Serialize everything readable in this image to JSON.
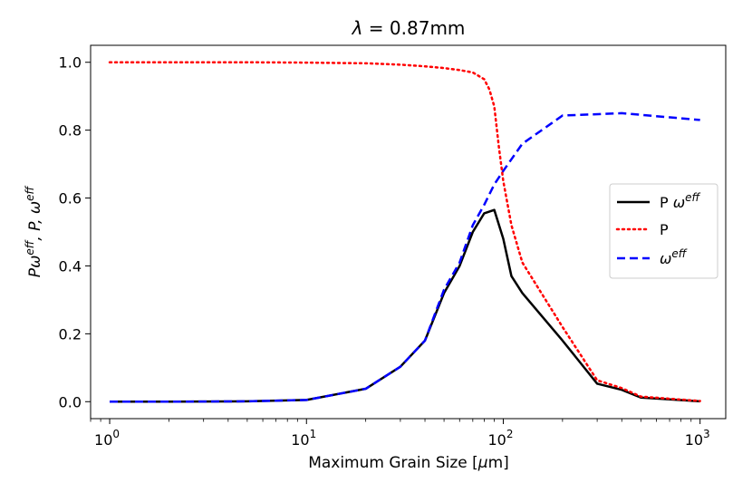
{
  "chart_data": {
    "type": "line",
    "title": "λ = 0.87mm",
    "title_prefix": "λ",
    "title_suffix": " = 0.87mm",
    "xlabel": "Maximum Grain Size [μm]",
    "xlabel_prefix": "Maximum Grain Size [",
    "xlabel_unit": "μ",
    "xlabel_suffix": "m]",
    "ylabel": "Pω^eff, P, ω^eff",
    "xscale": "log",
    "xlim": [
      0.8,
      1350
    ],
    "ylim": [
      -0.05,
      1.05
    ],
    "xticks": [
      {
        "value": 1,
        "base": "10",
        "exp": "0"
      },
      {
        "value": 10,
        "base": "10",
        "exp": "1"
      },
      {
        "value": 100,
        "base": "10",
        "exp": "2"
      },
      {
        "value": 1000,
        "base": "10",
        "exp": "3"
      }
    ],
    "yticks": [
      {
        "value": 0.0,
        "label": "0.0"
      },
      {
        "value": 0.2,
        "label": "0.2"
      },
      {
        "value": 0.4,
        "label": "0.4"
      },
      {
        "value": 0.6,
        "label": "0.6"
      },
      {
        "value": 0.8,
        "label": "0.8"
      },
      {
        "value": 1.0,
        "label": "1.0"
      }
    ],
    "legend_position": "center-right",
    "series": [
      {
        "name": "P ω^eff",
        "legend_prefix": "P ",
        "legend_symbol": "ω",
        "legend_sup": "eff",
        "color": "#000000",
        "style": "solid",
        "x": [
          1,
          2,
          5,
          10,
          20,
          30,
          40,
          50,
          60,
          70,
          80,
          90,
          100,
          110,
          125,
          200,
          300,
          400,
          500,
          1000
        ],
        "y": [
          0.0,
          0.0,
          0.001,
          0.005,
          0.038,
          0.103,
          0.18,
          0.32,
          0.4,
          0.5,
          0.555,
          0.565,
          0.48,
          0.37,
          0.32,
          0.18,
          0.053,
          0.035,
          0.012,
          0.001
        ]
      },
      {
        "name": "P",
        "legend_prefix": "P",
        "legend_symbol": "",
        "legend_sup": "",
        "color": "#ff0000",
        "style": "dotted",
        "x": [
          1,
          2,
          5,
          10,
          20,
          30,
          40,
          50,
          60,
          70,
          80,
          85,
          90,
          95,
          100,
          110,
          125,
          200,
          300,
          400,
          500,
          1000
        ],
        "y": [
          1.0,
          1.0,
          1.0,
          0.999,
          0.997,
          0.993,
          0.988,
          0.983,
          0.977,
          0.97,
          0.95,
          0.92,
          0.87,
          0.75,
          0.65,
          0.52,
          0.41,
          0.22,
          0.063,
          0.04,
          0.015,
          0.002
        ]
      },
      {
        "name": "ω^eff",
        "legend_prefix": "",
        "legend_symbol": "ω",
        "legend_sup": "eff",
        "color": "#0000ff",
        "style": "dashed",
        "x": [
          1,
          2,
          5,
          10,
          20,
          30,
          40,
          50,
          60,
          70,
          80,
          90,
          100,
          125,
          200,
          400,
          1000
        ],
        "y": [
          0.0,
          0.0,
          0.001,
          0.005,
          0.038,
          0.103,
          0.18,
          0.33,
          0.41,
          0.52,
          0.58,
          0.64,
          0.68,
          0.76,
          0.843,
          0.85,
          0.83
        ]
      }
    ]
  }
}
